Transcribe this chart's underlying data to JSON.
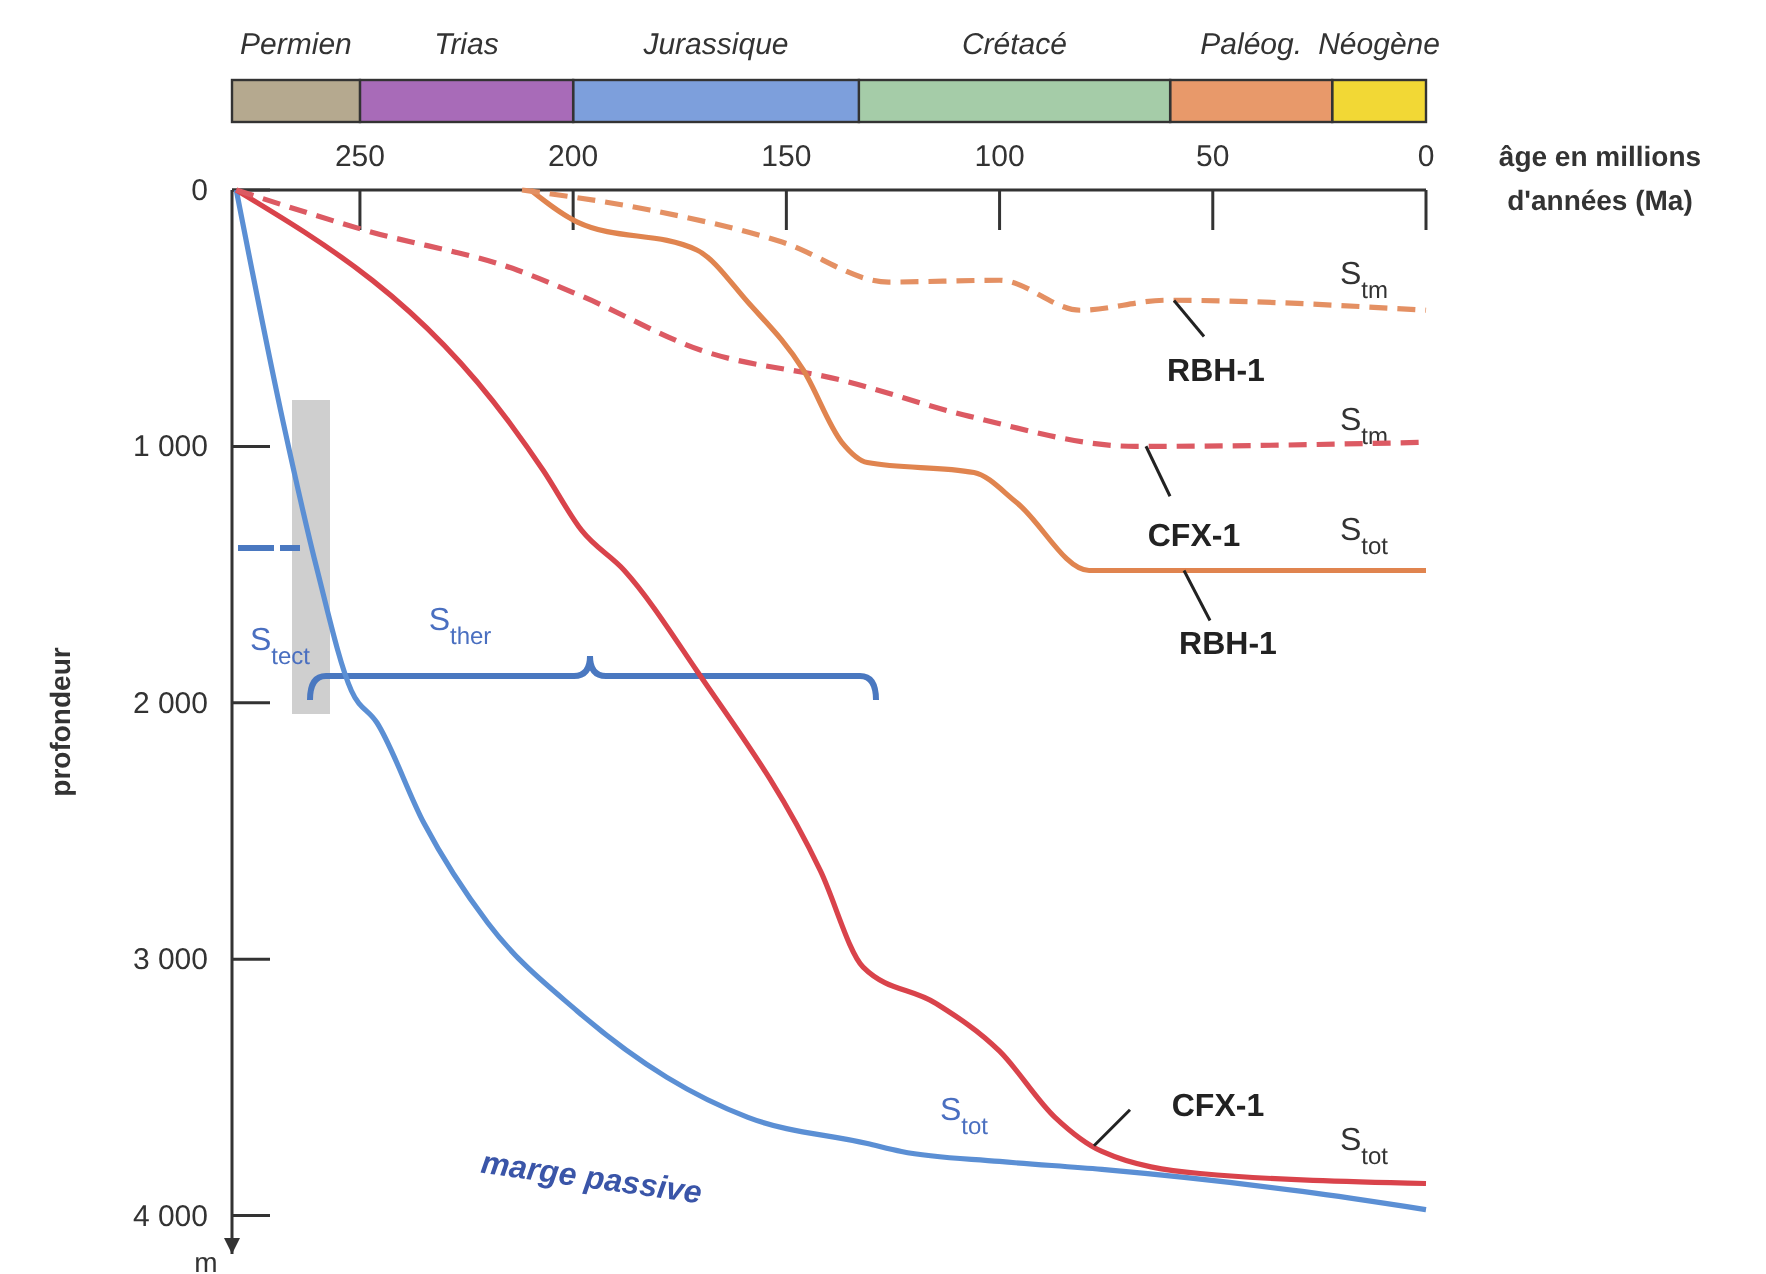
{
  "chart_data": [
    {
      "type": "bar",
      "orientation": "horizontal",
      "stacked": true,
      "tick_labels": false,
      "categories": [
        null
      ],
      "xlim": [
        280,
        0
      ],
      "series": [
        {
          "name": "Néogène",
          "color": "#f2d835",
          "values": [
            22
          ]
        },
        {
          "name": "Paléog.",
          "color": "#e8996a",
          "values": [
            38
          ]
        },
        {
          "name": "Crétacé",
          "color": "#a5cca8",
          "values": [
            73
          ]
        },
        {
          "name": "Jurassique",
          "color": "#7d9fdc",
          "values": [
            67
          ]
        },
        {
          "name": "Trias",
          "color": "#a86bb8",
          "values": [
            50
          ]
        },
        {
          "name": "Permien",
          "color": "#b5a98f",
          "values": [
            30
          ]
        }
      ]
    },
    {
      "type": "line",
      "xlabel": "âge en millions d'années (Ma)",
      "ylabel": "profondeur",
      "xlim": [
        280,
        0
      ],
      "ylim": [
        4150,
        0
      ],
      "xticks": [
        {
          "value": 250,
          "label": "250"
        },
        {
          "value": 200,
          "label": "200"
        },
        {
          "value": 150,
          "label": "150"
        },
        {
          "value": 100,
          "label": "100"
        },
        {
          "value": 50,
          "label": "50"
        },
        {
          "value": 0,
          "label": "0"
        }
      ],
      "yticks": [
        {
          "value": 0,
          "label": "0"
        },
        {
          "value": 1000,
          "label": "1 000"
        },
        {
          "value": 2000,
          "label": "2 000"
        },
        {
          "value": 3000,
          "label": "3 000"
        },
        {
          "value": 4000,
          "label": "4 000"
        }
      ],
      "series": [
        {
          "name": "marge passive",
          "color": "#5b8fd4",
          "line_style": "solid",
          "x": [
            279,
            268,
            260,
            252,
            246,
            235,
            220,
            199,
            178,
            159,
            131,
            123,
            100,
            76,
            29,
            0
          ],
          "values": [
            0,
            906,
            1484,
            1953,
            2078,
            2469,
            2859,
            3203,
            3461,
            3617,
            3719,
            3750,
            3789,
            3820,
            3906,
            3977
          ]
        },
        {
          "name": "CFX-1",
          "color": "#d9434b",
          "line_style": "solid",
          "x": [
            279,
            215,
            207,
            198,
            188,
            171,
            142,
            132,
            115,
            100,
            87,
            76,
            53,
            0
          ],
          "values": [
            0,
            906,
            1094,
            1328,
            1484,
            1875,
            2656,
            3031,
            3172,
            3359,
            3617,
            3750,
            3836,
            3875
          ]
        },
        {
          "name": "CFX-1",
          "color": "#dc5a63",
          "line_style": "dashed",
          "x": [
            279,
            249,
            213,
            198,
            170,
            137,
            107,
            68,
            0
          ],
          "values": [
            0,
            156,
            313,
            414,
            625,
            742,
            883,
            1000,
            984
          ]
        },
        {
          "name": "RBH-1",
          "color": "#e0844f",
          "line_style": "solid",
          "x": [
            210,
            199,
            171,
            159,
            146,
            137,
            131,
            106,
            96,
            79,
            0
          ],
          "values": [
            0,
            125,
            234,
            438,
            703,
            984,
            1063,
            1102,
            1219,
            1484,
            1484
          ]
        },
        {
          "name": "RBH-1",
          "color": "#e49063",
          "line_style": "dashed",
          "x": [
            212,
            182,
            151,
            126,
            100,
            81,
            61,
            0
          ],
          "values": [
            0,
            78,
            203,
            359,
            352,
            469,
            430,
            469
          ]
        }
      ],
      "annotations": [
        "S$_{tm}$",
        "S$_{tm}$",
        "S$_{tot}$",
        "S$_{tot}$",
        "S$_{tot}$",
        "S$_{tect}$",
        "S$_{ther}$",
        "m"
      ]
    }
  ]
}
